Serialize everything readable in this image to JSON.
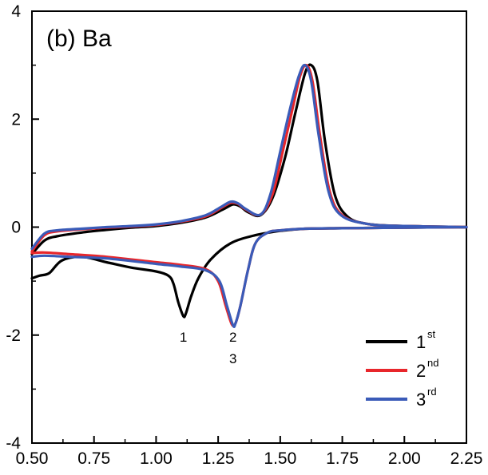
{
  "chart_data": {
    "type": "line",
    "title": "(b) Ba",
    "xlabel": "",
    "ylabel": "",
    "xlim": [
      0.5,
      2.25
    ],
    "ylim": [
      -4,
      4
    ],
    "x_ticks": [
      "0.50",
      "0.75",
      "1.00",
      "1.25",
      "1.50",
      "1.75",
      "2.00",
      "2.25"
    ],
    "y_ticks": [
      "-4",
      "-2",
      "0",
      "2",
      "4"
    ],
    "grid": false,
    "legend": {
      "placement": "bottom-right",
      "entries": [
        {
          "base": "1",
          "sup": "st",
          "color": "#000000"
        },
        {
          "base": "2",
          "sup": "nd",
          "color": "#e8262b"
        },
        {
          "base": "3",
          "sup": "rd",
          "color": "#3a5bb8"
        }
      ]
    },
    "annotations": [
      {
        "text": "1",
        "x": 1.11,
        "y": -2.0
      },
      {
        "text": "2",
        "x": 1.31,
        "y": -2.0
      },
      {
        "text": "3",
        "x": 1.31,
        "y": -2.4
      }
    ],
    "series": [
      {
        "name": "1st",
        "color": "#000000",
        "anodic": [
          [
            0.5,
            -0.5
          ],
          [
            0.55,
            -0.25
          ],
          [
            0.6,
            -0.17
          ],
          [
            0.7,
            -0.1
          ],
          [
            0.8,
            -0.05
          ],
          [
            0.9,
            -0.01
          ],
          [
            1.0,
            0.02
          ],
          [
            1.1,
            0.08
          ],
          [
            1.2,
            0.18
          ],
          [
            1.27,
            0.33
          ],
          [
            1.31,
            0.42
          ],
          [
            1.34,
            0.38
          ],
          [
            1.37,
            0.28
          ],
          [
            1.42,
            0.22
          ],
          [
            1.47,
            0.55
          ],
          [
            1.52,
            1.3
          ],
          [
            1.56,
            2.1
          ],
          [
            1.6,
            2.85
          ],
          [
            1.625,
            3.0
          ],
          [
            1.65,
            2.7
          ],
          [
            1.68,
            1.6
          ],
          [
            1.72,
            0.6
          ],
          [
            1.77,
            0.2
          ],
          [
            1.85,
            0.06
          ],
          [
            2.0,
            0.02
          ],
          [
            2.25,
            0.0
          ]
        ],
        "cathodic": [
          [
            2.25,
            0.0
          ],
          [
            2.0,
            -0.01
          ],
          [
            1.75,
            -0.02
          ],
          [
            1.6,
            -0.03
          ],
          [
            1.5,
            -0.07
          ],
          [
            1.4,
            -0.15
          ],
          [
            1.3,
            -0.3
          ],
          [
            1.22,
            -0.6
          ],
          [
            1.17,
            -0.95
          ],
          [
            1.14,
            -1.3
          ],
          [
            1.12,
            -1.6
          ],
          [
            1.11,
            -1.65
          ],
          [
            1.09,
            -1.4
          ],
          [
            1.07,
            -1.05
          ],
          [
            1.05,
            -0.9
          ],
          [
            1.0,
            -0.82
          ],
          [
            0.9,
            -0.75
          ],
          [
            0.8,
            -0.65
          ],
          [
            0.7,
            -0.55
          ],
          [
            0.62,
            -0.62
          ],
          [
            0.57,
            -0.85
          ],
          [
            0.53,
            -0.9
          ],
          [
            0.5,
            -0.95
          ]
        ]
      },
      {
        "name": "2nd",
        "color": "#e8262b",
        "anodic": [
          [
            0.5,
            -0.45
          ],
          [
            0.55,
            -0.15
          ],
          [
            0.6,
            -0.08
          ],
          [
            0.7,
            -0.04
          ],
          [
            0.8,
            -0.01
          ],
          [
            0.9,
            0.01
          ],
          [
            1.0,
            0.04
          ],
          [
            1.1,
            0.1
          ],
          [
            1.2,
            0.2
          ],
          [
            1.26,
            0.35
          ],
          [
            1.3,
            0.45
          ],
          [
            1.33,
            0.43
          ],
          [
            1.36,
            0.33
          ],
          [
            1.42,
            0.23
          ],
          [
            1.47,
            0.62
          ],
          [
            1.51,
            1.4
          ],
          [
            1.55,
            2.2
          ],
          [
            1.58,
            2.8
          ],
          [
            1.605,
            3.0
          ],
          [
            1.63,
            2.7
          ],
          [
            1.66,
            1.7
          ],
          [
            1.7,
            0.65
          ],
          [
            1.75,
            0.22
          ],
          [
            1.85,
            0.06
          ],
          [
            2.0,
            0.02
          ],
          [
            2.25,
            0.0
          ]
        ],
        "cathodic": [
          [
            2.25,
            0.0
          ],
          [
            2.0,
            -0.01
          ],
          [
            1.75,
            -0.02
          ],
          [
            1.6,
            -0.03
          ],
          [
            1.5,
            -0.06
          ],
          [
            1.45,
            -0.1
          ],
          [
            1.4,
            -0.3
          ],
          [
            1.37,
            -0.8
          ],
          [
            1.34,
            -1.45
          ],
          [
            1.32,
            -1.78
          ],
          [
            1.305,
            -1.8
          ],
          [
            1.28,
            -1.45
          ],
          [
            1.25,
            -1.0
          ],
          [
            1.2,
            -0.78
          ],
          [
            1.1,
            -0.7
          ],
          [
            1.0,
            -0.65
          ],
          [
            0.8,
            -0.55
          ],
          [
            0.65,
            -0.5
          ],
          [
            0.55,
            -0.47
          ],
          [
            0.5,
            -0.48
          ]
        ]
      },
      {
        "name": "3rd",
        "color": "#3a5bb8",
        "anodic": [
          [
            0.5,
            -0.4
          ],
          [
            0.55,
            -0.12
          ],
          [
            0.6,
            -0.06
          ],
          [
            0.7,
            -0.03
          ],
          [
            0.8,
            0.0
          ],
          [
            0.9,
            0.02
          ],
          [
            1.0,
            0.05
          ],
          [
            1.1,
            0.11
          ],
          [
            1.2,
            0.22
          ],
          [
            1.26,
            0.37
          ],
          [
            1.3,
            0.47
          ],
          [
            1.33,
            0.44
          ],
          [
            1.36,
            0.34
          ],
          [
            1.42,
            0.23
          ],
          [
            1.46,
            0.6
          ],
          [
            1.5,
            1.4
          ],
          [
            1.54,
            2.2
          ],
          [
            1.575,
            2.8
          ],
          [
            1.6,
            3.0
          ],
          [
            1.625,
            2.7
          ],
          [
            1.655,
            1.7
          ],
          [
            1.695,
            0.65
          ],
          [
            1.745,
            0.22
          ],
          [
            1.85,
            0.06
          ],
          [
            2.0,
            0.02
          ],
          [
            2.25,
            0.0
          ]
        ],
        "cathodic": [
          [
            2.25,
            0.0
          ],
          [
            2.0,
            -0.01
          ],
          [
            1.75,
            -0.02
          ],
          [
            1.6,
            -0.03
          ],
          [
            1.5,
            -0.06
          ],
          [
            1.45,
            -0.1
          ],
          [
            1.4,
            -0.3
          ],
          [
            1.37,
            -0.8
          ],
          [
            1.34,
            -1.45
          ],
          [
            1.32,
            -1.78
          ],
          [
            1.31,
            -1.82
          ],
          [
            1.285,
            -1.45
          ],
          [
            1.255,
            -1.0
          ],
          [
            1.2,
            -0.8
          ],
          [
            1.1,
            -0.73
          ],
          [
            1.0,
            -0.68
          ],
          [
            0.8,
            -0.58
          ],
          [
            0.65,
            -0.55
          ],
          [
            0.55,
            -0.53
          ],
          [
            0.5,
            -0.55
          ]
        ]
      }
    ]
  }
}
